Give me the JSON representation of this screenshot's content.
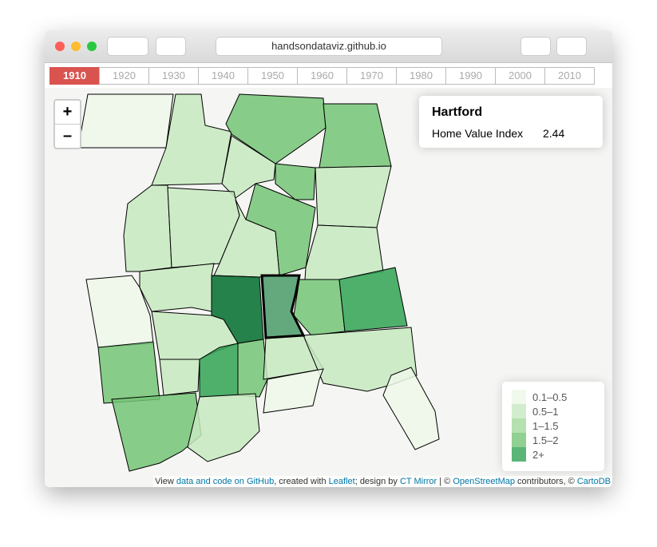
{
  "browser": {
    "url": "handsondataviz.github.io"
  },
  "years": [
    "1910",
    "1920",
    "1930",
    "1940",
    "1950",
    "1960",
    "1970",
    "1980",
    "1990",
    "2000",
    "2010"
  ],
  "zoom": {
    "in": "+",
    "out": "–"
  },
  "info": {
    "title": "Hartford",
    "label": "Home Value Index",
    "value": "2.44"
  },
  "legend": [
    {
      "label": "0.1–0.5",
      "color": "#edf8e9"
    },
    {
      "label": "0.5–1",
      "color": "#c7e9c0"
    },
    {
      "label": "1–1.5",
      "color": "#a1d99b"
    },
    {
      "label": "1.5–2",
      "color": "#74c476"
    },
    {
      "label": "2+",
      "color": "#31a354"
    }
  ],
  "attribution": [
    "View ",
    "data and code on GitHub",
    ", created with ",
    "Leaflet",
    "; design by ",
    "CT Mirror",
    " | © ",
    "OpenStreetMap",
    " contributors, © ",
    "CartoDB"
  ]
}
